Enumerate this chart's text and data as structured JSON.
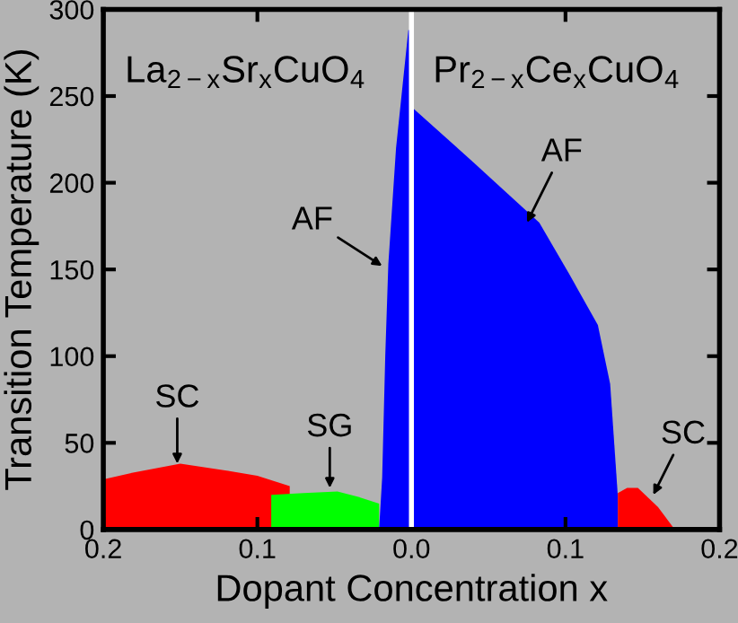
{
  "chart_data": {
    "type": "area",
    "xlabel": "Dopant Concentration x",
    "ylabel": "Transition Temperature (K)",
    "series": [
      {
        "color": "#ff0000",
        "x": [
          -0.2,
          -0.18,
          -0.15,
          -0.12,
          -0.1,
          -0.079
        ],
        "values": [
          29,
          33,
          38,
          34,
          31,
          25
        ]
      },
      {
        "color": "#00ff00",
        "x": [
          -0.091,
          -0.07,
          -0.048,
          -0.035,
          -0.021
        ],
        "values": [
          20,
          21,
          22,
          19,
          15
        ]
      },
      {
        "color": "#0000ff",
        "x": [
          -0.021,
          -0.019,
          -0.017,
          -0.015,
          -0.01,
          -0.002,
          0
        ],
        "values": [
          0,
          30,
          100,
          153,
          220,
          288,
          288
        ]
      },
      {
        "color": "#0000ff",
        "x": [
          0.001,
          0.04,
          0.083,
          0.102,
          0.121,
          0.129,
          0.134,
          0.1341
        ],
        "values": [
          243,
          212,
          177,
          148,
          118,
          84,
          19,
          0
        ]
      },
      {
        "color": "#ff0000",
        "x": [
          0.134,
          0.14,
          0.147,
          0.16,
          0.171
        ],
        "values": [
          21,
          24,
          24,
          13,
          0
        ]
      }
    ],
    "xlim": [
      -0.2,
      0.2
    ],
    "xticks": [
      {
        "value": -0.2,
        "label": "0.2"
      },
      {
        "value": -0.1,
        "label": "0.1"
      },
      {
        "value": 0,
        "label": "0.0"
      },
      0.1,
      0.2
    ],
    "ylim": [
      0,
      300
    ],
    "yticks": [
      0,
      50,
      100,
      150,
      200,
      250,
      300
    ],
    "ref_lines": [
      {
        "axis": "x",
        "value": 0,
        "color": "#ffffff"
      }
    ],
    "annotations": [
      "La$_{2−x}$Sr$_{x}$CuO$_{4}$",
      "Pr$_{2−x}$Ce$_{x}$CuO$_{4}$",
      {
        "text": "SC",
        "x": -0.152,
        "y": 38
      },
      {
        "text": "SG",
        "x": -0.053,
        "y": 24
      },
      {
        "text": "AF",
        "x": -0.019,
        "y": 152
      },
      {
        "text": "AF",
        "x": 0.075,
        "y": 177
      },
      {
        "text": "SC",
        "x": 0.157,
        "y": 20
      }
    ],
    "grid": false,
    "legend": false
  }
}
